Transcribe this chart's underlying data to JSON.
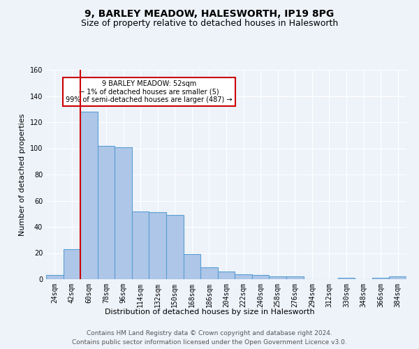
{
  "title": "9, BARLEY MEADOW, HALESWORTH, IP19 8PG",
  "subtitle": "Size of property relative to detached houses in Halesworth",
  "xlabel": "Distribution of detached houses by size in Halesworth",
  "ylabel": "Number of detached properties",
  "bar_labels": [
    "24sqm",
    "42sqm",
    "60sqm",
    "78sqm",
    "96sqm",
    "114sqm",
    "132sqm",
    "150sqm",
    "168sqm",
    "186sqm",
    "204sqm",
    "222sqm",
    "240sqm",
    "258sqm",
    "276sqm",
    "294sqm",
    "312sqm",
    "330sqm",
    "348sqm",
    "366sqm",
    "384sqm"
  ],
  "bar_values": [
    3,
    23,
    128,
    102,
    101,
    52,
    51,
    49,
    19,
    9,
    6,
    4,
    3,
    2,
    2,
    0,
    0,
    1,
    0,
    1,
    2
  ],
  "bar_color": "#aec6e8",
  "bar_edge_color": "#5a9fd4",
  "ylim": [
    0,
    160
  ],
  "yticks": [
    0,
    20,
    40,
    60,
    80,
    100,
    120,
    140,
    160
  ],
  "red_line_x": 1.5,
  "annotation_text": "9 BARLEY MEADOW: 52sqm\n← 1% of detached houses are smaller (5)\n99% of semi-detached houses are larger (487) →",
  "annotation_box_color": "#ffffff",
  "annotation_box_edge": "#cc0000",
  "footer1": "Contains HM Land Registry data © Crown copyright and database right 2024.",
  "footer2": "Contains public sector information licensed under the Open Government Licence v3.0.",
  "background_color": "#eef3fa",
  "grid_color": "#ffffff",
  "red_line_color": "#cc0000",
  "title_fontsize": 10,
  "subtitle_fontsize": 9,
  "label_fontsize": 8,
  "tick_fontsize": 7,
  "footer_fontsize": 6.5
}
